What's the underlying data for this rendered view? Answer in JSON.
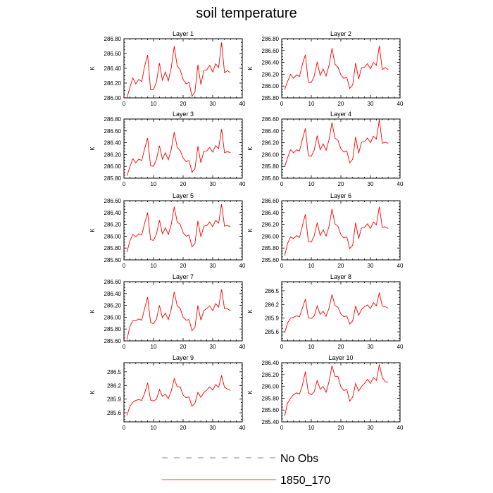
{
  "page": {
    "title": "soil temperature"
  },
  "chart_data": [
    {
      "type": "line",
      "title": "Layer 1",
      "ylabel": "K",
      "xlim": [
        0,
        40
      ],
      "ylim": [
        286.0,
        286.8
      ],
      "xticks": [
        "0",
        "10",
        "20",
        "30",
        "40"
      ],
      "yticks": [
        "286.00",
        "286.20",
        "286.40",
        "286.60",
        "286.80"
      ],
      "series": [
        {
          "name": "1850_170",
          "color": "#ff0000",
          "x": [
            1,
            2,
            3,
            4,
            5,
            6,
            7,
            8,
            9,
            10,
            11,
            12,
            13,
            14,
            15,
            16,
            17,
            18,
            19,
            20,
            21,
            22,
            23,
            24,
            25,
            26,
            27,
            28,
            29,
            30,
            31,
            32,
            33,
            34,
            35,
            36
          ],
          "values": [
            286.0,
            286.14,
            286.27,
            286.19,
            286.25,
            286.22,
            286.43,
            286.58,
            286.11,
            286.11,
            286.22,
            286.47,
            286.24,
            286.35,
            286.23,
            286.41,
            286.7,
            286.43,
            286.38,
            286.25,
            286.19,
            286.21,
            286.02,
            286.08,
            286.45,
            286.18,
            286.37,
            286.38,
            286.44,
            286.35,
            286.46,
            286.41,
            286.75,
            286.34,
            286.37,
            286.34
          ]
        }
      ]
    },
    {
      "type": "line",
      "title": "Layer 2",
      "ylabel": "K",
      "xlim": [
        0,
        40
      ],
      "ylim": [
        285.8,
        286.8
      ],
      "xticks": [
        "0",
        "10",
        "20",
        "30",
        "40"
      ],
      "yticks": [
        "285.80",
        "286.00",
        "286.20",
        "286.40",
        "286.60",
        "286.80"
      ],
      "series": [
        {
          "name": "1850_170",
          "color": "#ff0000",
          "x": [
            1,
            2,
            3,
            4,
            5,
            6,
            7,
            8,
            9,
            10,
            11,
            12,
            13,
            14,
            15,
            16,
            17,
            18,
            19,
            20,
            21,
            22,
            23,
            24,
            25,
            26,
            27,
            28,
            29,
            30,
            31,
            32,
            33,
            34,
            35,
            36
          ],
          "values": [
            285.94,
            286.08,
            286.2,
            286.13,
            286.19,
            286.16,
            286.37,
            286.53,
            286.06,
            286.06,
            286.17,
            286.41,
            286.18,
            286.29,
            286.17,
            286.35,
            286.64,
            286.37,
            286.32,
            286.19,
            286.13,
            286.15,
            285.96,
            286.02,
            286.39,
            286.12,
            286.31,
            286.32,
            286.38,
            286.29,
            286.4,
            286.35,
            286.68,
            286.28,
            286.31,
            286.28
          ]
        }
      ]
    },
    {
      "type": "line",
      "title": "Layer 3",
      "ylabel": "K",
      "xlim": [
        0,
        40
      ],
      "ylim": [
        285.8,
        286.8
      ],
      "xticks": [
        "0",
        "10",
        "20",
        "30",
        "40"
      ],
      "yticks": [
        "285.80",
        "286.00",
        "286.20",
        "286.40",
        "286.60",
        "286.80"
      ],
      "series": [
        {
          "name": "1850_170",
          "color": "#ff0000",
          "x": [
            1,
            2,
            3,
            4,
            5,
            6,
            7,
            8,
            9,
            10,
            11,
            12,
            13,
            14,
            15,
            16,
            17,
            18,
            19,
            20,
            21,
            22,
            23,
            24,
            25,
            26,
            27,
            28,
            29,
            30,
            31,
            32,
            33,
            34,
            35,
            36
          ],
          "values": [
            285.84,
            285.99,
            286.13,
            286.06,
            286.12,
            286.1,
            286.3,
            286.48,
            286.01,
            286.0,
            286.12,
            286.35,
            286.12,
            286.23,
            286.11,
            286.29,
            286.58,
            286.32,
            286.27,
            286.14,
            286.08,
            286.1,
            285.9,
            285.96,
            286.34,
            286.06,
            286.26,
            286.26,
            286.32,
            286.24,
            286.35,
            286.3,
            286.63,
            286.23,
            286.25,
            286.23
          ]
        }
      ]
    },
    {
      "type": "line",
      "title": "Layer 4",
      "ylabel": "K",
      "xlim": [
        0,
        40
      ],
      "ylim": [
        285.6,
        286.6
      ],
      "xticks": [
        "0",
        "10",
        "20",
        "30",
        "40"
      ],
      "yticks": [
        "285.60",
        "285.80",
        "286.00",
        "286.20",
        "286.40",
        "286.60"
      ],
      "series": [
        {
          "name": "1850_170",
          "color": "#ff0000",
          "x": [
            1,
            2,
            3,
            4,
            5,
            6,
            7,
            8,
            9,
            10,
            11,
            12,
            13,
            14,
            15,
            16,
            17,
            18,
            19,
            20,
            21,
            22,
            23,
            24,
            25,
            26,
            27,
            28,
            29,
            30,
            31,
            32,
            33,
            34,
            35,
            36
          ],
          "values": [
            285.79,
            285.95,
            286.08,
            286.03,
            286.08,
            286.06,
            286.26,
            286.44,
            285.98,
            285.97,
            286.08,
            286.32,
            286.08,
            286.18,
            286.07,
            286.25,
            286.54,
            286.28,
            286.24,
            286.1,
            286.04,
            286.06,
            285.86,
            285.92,
            286.3,
            286.02,
            286.21,
            286.22,
            286.28,
            286.2,
            286.31,
            286.26,
            286.59,
            286.19,
            286.21,
            286.19
          ]
        }
      ]
    },
    {
      "type": "line",
      "title": "Layer 5",
      "ylabel": "K",
      "xlim": [
        0,
        40
      ],
      "ylim": [
        285.6,
        286.6
      ],
      "xticks": [
        "0",
        "10",
        "20",
        "30",
        "40"
      ],
      "yticks": [
        "285.60",
        "285.80",
        "286.00",
        "286.20",
        "286.40",
        "286.60"
      ],
      "series": [
        {
          "name": "1850_170",
          "color": "#ff0000",
          "x": [
            1,
            2,
            3,
            4,
            5,
            6,
            7,
            8,
            9,
            10,
            11,
            12,
            13,
            14,
            15,
            16,
            17,
            18,
            19,
            20,
            21,
            22,
            23,
            24,
            25,
            26,
            27,
            28,
            29,
            30,
            31,
            32,
            33,
            34,
            35,
            36
          ],
          "values": [
            285.73,
            285.92,
            286.03,
            285.99,
            286.04,
            286.02,
            286.22,
            286.4,
            285.94,
            285.93,
            286.04,
            286.27,
            286.04,
            286.14,
            286.03,
            286.2,
            286.5,
            286.24,
            286.2,
            286.06,
            286.0,
            286.02,
            285.82,
            285.88,
            286.26,
            285.99,
            286.17,
            286.18,
            286.24,
            286.16,
            286.27,
            286.22,
            286.54,
            286.17,
            286.18,
            286.16
          ]
        }
      ]
    },
    {
      "type": "line",
      "title": "Layer 6",
      "ylabel": "K",
      "xlim": [
        0,
        40
      ],
      "ylim": [
        285.6,
        286.6
      ],
      "xticks": [
        "0",
        "10",
        "20",
        "30",
        "40"
      ],
      "yticks": [
        "285.60",
        "285.80",
        "286.00",
        "286.20",
        "286.40",
        "286.60"
      ],
      "series": [
        {
          "name": "1850_170",
          "color": "#ff0000",
          "x": [
            1,
            2,
            3,
            4,
            5,
            6,
            7,
            8,
            9,
            10,
            11,
            12,
            13,
            14,
            15,
            16,
            17,
            18,
            19,
            20,
            21,
            22,
            23,
            24,
            25,
            26,
            27,
            28,
            29,
            30,
            31,
            32,
            33,
            34,
            35,
            36
          ],
          "values": [
            285.67,
            285.88,
            285.99,
            285.96,
            286.01,
            285.98,
            286.18,
            286.37,
            285.91,
            285.9,
            286.01,
            286.23,
            286.01,
            286.11,
            286.0,
            286.17,
            286.46,
            286.21,
            286.17,
            286.03,
            285.97,
            285.99,
            285.79,
            285.85,
            286.23,
            285.96,
            286.14,
            286.15,
            286.21,
            286.13,
            286.24,
            286.19,
            286.5,
            286.15,
            286.16,
            286.13
          ]
        }
      ]
    },
    {
      "type": "line",
      "title": "Layer 7",
      "ylabel": "K",
      "xlim": [
        0,
        40
      ],
      "ylim": [
        285.6,
        286.6
      ],
      "xticks": [
        "0",
        "10",
        "20",
        "30",
        "40"
      ],
      "yticks": [
        "285.60",
        "285.80",
        "286.00",
        "286.20",
        "286.40",
        "286.60"
      ],
      "series": [
        {
          "name": "1850_170",
          "color": "#ff0000",
          "x": [
            1,
            2,
            3,
            4,
            5,
            6,
            7,
            8,
            9,
            10,
            11,
            12,
            13,
            14,
            15,
            16,
            17,
            18,
            19,
            20,
            21,
            22,
            23,
            24,
            25,
            26,
            27,
            28,
            29,
            30,
            31,
            32,
            33,
            34,
            35,
            36
          ],
          "values": [
            285.62,
            285.84,
            285.94,
            285.94,
            285.97,
            285.95,
            286.15,
            286.34,
            285.91,
            285.89,
            285.97,
            286.2,
            285.99,
            286.07,
            285.96,
            286.14,
            286.43,
            286.19,
            286.15,
            286.0,
            285.95,
            285.96,
            285.77,
            285.83,
            286.2,
            285.95,
            286.11,
            286.15,
            286.19,
            286.11,
            286.23,
            286.17,
            286.47,
            286.14,
            286.14,
            286.11
          ]
        }
      ]
    },
    {
      "type": "line",
      "title": "Layer 8",
      "ylabel": "K",
      "xlim": [
        0,
        40
      ],
      "ylim": [
        285.4,
        286.7
      ],
      "xticks": [
        "0",
        "10",
        "20",
        "30",
        "40"
      ],
      "yticks": [
        "285.6",
        "285.9",
        "286.2",
        "286.5"
      ],
      "series": [
        {
          "name": "1850_170",
          "color": "#ff0000",
          "x": [
            1,
            2,
            3,
            4,
            5,
            6,
            7,
            8,
            9,
            10,
            11,
            12,
            13,
            14,
            15,
            16,
            17,
            18,
            19,
            20,
            21,
            22,
            23,
            24,
            25,
            26,
            27,
            28,
            29,
            30,
            31,
            32,
            33,
            34,
            35,
            36
          ],
          "values": [
            285.58,
            285.8,
            285.9,
            285.92,
            285.95,
            285.93,
            286.12,
            286.32,
            285.91,
            285.89,
            285.95,
            286.17,
            285.98,
            286.05,
            285.94,
            286.12,
            286.42,
            286.18,
            286.14,
            285.99,
            285.93,
            285.95,
            285.77,
            285.84,
            286.17,
            285.96,
            286.09,
            286.15,
            286.19,
            286.11,
            286.24,
            286.17,
            286.46,
            286.16,
            286.15,
            286.12
          ]
        }
      ]
    },
    {
      "type": "line",
      "title": "Layer 9",
      "ylabel": "K",
      "xlim": [
        0,
        40
      ],
      "ylim": [
        285.4,
        286.7
      ],
      "xticks": [
        "0",
        "10",
        "20",
        "30",
        "40"
      ],
      "yticks": [
        "285.6",
        "285.9",
        "286.2",
        "286.5"
      ],
      "series": [
        {
          "name": "1850_170",
          "color": "#ff0000",
          "x": [
            1,
            2,
            3,
            4,
            5,
            6,
            7,
            8,
            9,
            10,
            11,
            12,
            13,
            14,
            15,
            16,
            17,
            18,
            19,
            20,
            21,
            22,
            23,
            24,
            25,
            26,
            27,
            28,
            29,
            30,
            31,
            32,
            33,
            34,
            35,
            36
          ],
          "values": [
            285.54,
            285.74,
            285.83,
            285.87,
            285.89,
            285.87,
            286.03,
            286.26,
            285.88,
            285.86,
            285.9,
            286.11,
            285.96,
            286.01,
            285.91,
            286.08,
            286.35,
            286.17,
            286.17,
            285.99,
            285.93,
            285.95,
            285.74,
            285.81,
            286.05,
            285.94,
            286.04,
            286.1,
            286.17,
            286.1,
            286.22,
            286.16,
            286.41,
            286.16,
            286.12,
            286.09
          ]
        }
      ]
    },
    {
      "type": "line",
      "title": "Layer 10",
      "ylabel": "K",
      "xlim": [
        0,
        40
      ],
      "ylim": [
        285.4,
        286.4
      ],
      "xticks": [
        "0",
        "10",
        "20",
        "30",
        "40"
      ],
      "yticks": [
        "285.40",
        "285.60",
        "285.80",
        "286.00",
        "286.20",
        "286.40"
      ],
      "series": [
        {
          "name": "1850_170",
          "color": "#ff0000",
          "x": [
            1,
            2,
            3,
            4,
            5,
            6,
            7,
            8,
            9,
            10,
            11,
            12,
            13,
            14,
            15,
            16,
            17,
            18,
            19,
            20,
            21,
            22,
            23,
            24,
            25,
            26,
            27,
            28,
            29,
            30,
            31,
            32,
            33,
            34,
            35,
            36
          ],
          "values": [
            285.5,
            285.72,
            285.8,
            285.86,
            285.89,
            285.87,
            286.02,
            286.25,
            285.89,
            285.86,
            285.91,
            286.1,
            285.95,
            286.0,
            285.9,
            286.08,
            286.35,
            286.17,
            286.17,
            285.99,
            285.93,
            285.95,
            285.75,
            285.82,
            286.05,
            285.92,
            286.0,
            286.05,
            286.12,
            286.05,
            286.15,
            286.1,
            286.37,
            286.15,
            286.08,
            286.07
          ]
        }
      ]
    }
  ],
  "legend": {
    "entries": [
      {
        "label": "No Obs",
        "color": "#5555aa",
        "style": "dashed"
      },
      {
        "label": "1850_170",
        "color": "#ff0000",
        "style": "solid"
      }
    ]
  }
}
